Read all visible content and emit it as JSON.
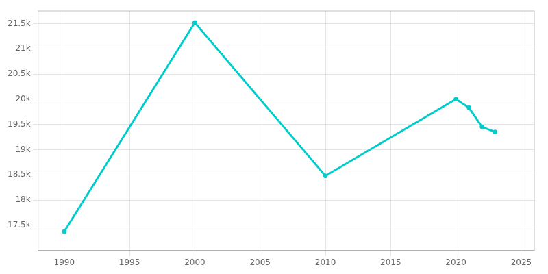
{
  "chart_data": {
    "type": "line",
    "x": [
      1990,
      2000,
      2010,
      2020,
      2021,
      2022,
      2023
    ],
    "values": [
      17374,
      21520,
      18480,
      20000,
      19830,
      19450,
      19350
    ],
    "color": "#00CCCC",
    "marker": "circle",
    "xlim": [
      1988,
      2026
    ],
    "ylim": [
      17000,
      21750
    ],
    "xticks": [
      1990,
      1995,
      2000,
      2005,
      2010,
      2015,
      2020,
      2025
    ],
    "yticks": [
      {
        "value": 17500,
        "label": "17.5k"
      },
      {
        "value": 18000,
        "label": "18k"
      },
      {
        "value": 18500,
        "label": "18.5k"
      },
      {
        "value": 19000,
        "label": "19k"
      },
      {
        "value": 19500,
        "label": "19.5k"
      },
      {
        "value": 20000,
        "label": "20k"
      },
      {
        "value": 20500,
        "label": "20.5k"
      },
      {
        "value": 21000,
        "label": "21k"
      },
      {
        "value": 21500,
        "label": "21.5k"
      }
    ],
    "grid": true
  }
}
